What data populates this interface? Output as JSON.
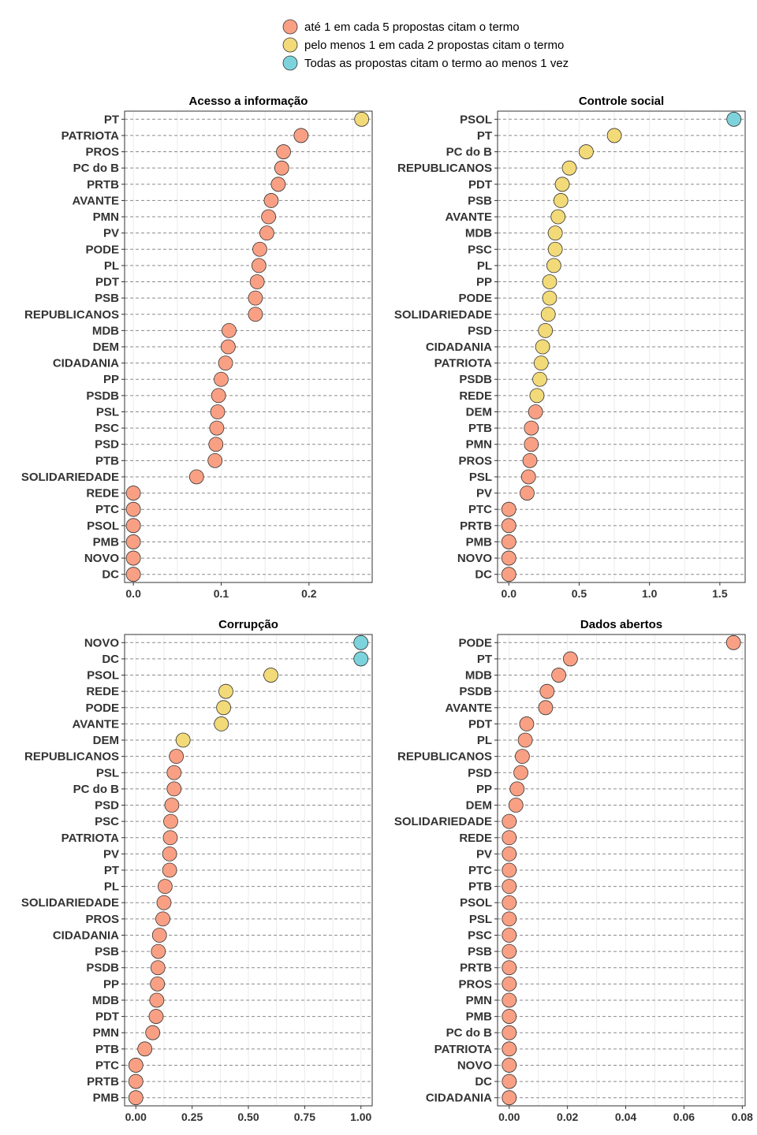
{
  "legend": {
    "items": [
      {
        "label": "até 1 em cada 5 propostas citam o termo",
        "color": "#F9A084"
      },
      {
        "label": "pelo menos 1 em cada 2 propostas citam o termo",
        "color": "#F2DA78"
      },
      {
        "label": "Todas as propostas citam o termo ao menos 1 vez",
        "color": "#7DD3DC"
      }
    ]
  },
  "chart_data": [
    {
      "type": "scatter",
      "title": "Acesso a informação",
      "xlim": [
        -0.01,
        0.272
      ],
      "ticks": [
        0.0,
        0.1,
        0.2
      ],
      "tick_labels": [
        "0.0",
        "0.1",
        "0.2"
      ],
      "categories": [
        "PT",
        "PATRIOTA",
        "PROS",
        "PC do B",
        "PRTB",
        "AVANTE",
        "PMN",
        "PV",
        "PODE",
        "PL",
        "PDT",
        "PSB",
        "REPUBLICANOS",
        "MDB",
        "DEM",
        "CIDADANIA",
        "PP",
        "PSDB",
        "PSL",
        "PSC",
        "PSD",
        "PTB",
        "SOLIDARIEDADE",
        "REDE",
        "PTC",
        "PSOL",
        "PMB",
        "NOVO",
        "DC"
      ],
      "values": [
        0.26,
        0.191,
        0.171,
        0.169,
        0.165,
        0.157,
        0.154,
        0.152,
        0.144,
        0.143,
        0.141,
        0.139,
        0.139,
        0.109,
        0.108,
        0.105,
        0.1,
        0.097,
        0.096,
        0.095,
        0.094,
        0.093,
        0.072,
        0,
        0,
        0,
        0,
        0,
        0
      ],
      "groups": [
        1,
        0,
        0,
        0,
        0,
        0,
        0,
        0,
        0,
        0,
        0,
        0,
        0,
        0,
        0,
        0,
        0,
        0,
        0,
        0,
        0,
        0,
        0,
        0,
        0,
        0,
        0,
        0,
        0
      ]
    },
    {
      "type": "scatter",
      "title": "Controle social",
      "xlim": [
        -0.08,
        1.68
      ],
      "ticks": [
        0.0,
        0.5,
        1.0,
        1.5
      ],
      "tick_labels": [
        "0.0",
        "0.5",
        "1.0",
        "1.5"
      ],
      "categories": [
        "PSOL",
        "PT",
        "PC do B",
        "REPUBLICANOS",
        "PDT",
        "PSB",
        "AVANTE",
        "MDB",
        "PSC",
        "PL",
        "PP",
        "PODE",
        "SOLIDARIEDADE",
        "PSD",
        "CIDADANIA",
        "PATRIOTA",
        "PSDB",
        "REDE",
        "DEM",
        "PTB",
        "PMN",
        "PROS",
        "PSL",
        "PV",
        "PTC",
        "PRTB",
        "PMB",
        "NOVO",
        "DC"
      ],
      "values": [
        1.6,
        0.75,
        0.55,
        0.43,
        0.38,
        0.37,
        0.35,
        0.33,
        0.33,
        0.32,
        0.29,
        0.29,
        0.28,
        0.26,
        0.24,
        0.23,
        0.22,
        0.2,
        0.19,
        0.16,
        0.16,
        0.15,
        0.14,
        0.13,
        0,
        0,
        0,
        0,
        0
      ],
      "groups": [
        2,
        1,
        1,
        1,
        1,
        1,
        1,
        1,
        1,
        1,
        1,
        1,
        1,
        1,
        1,
        1,
        1,
        1,
        0,
        0,
        0,
        0,
        0,
        0,
        0,
        0,
        0,
        0,
        0
      ]
    },
    {
      "type": "scatter",
      "title": "Corrupção",
      "xlim": [
        -0.05,
        1.05
      ],
      "ticks": [
        0.0,
        0.25,
        0.5,
        0.75,
        1.0
      ],
      "tick_labels": [
        "0.00",
        "0.25",
        "0.50",
        "0.75",
        "1.00"
      ],
      "categories": [
        "NOVO",
        "DC",
        "PSOL",
        "REDE",
        "PODE",
        "AVANTE",
        "DEM",
        "REPUBLICANOS",
        "PSL",
        "PC do B",
        "PSD",
        "PSC",
        "PATRIOTA",
        "PV",
        "PT",
        "PL",
        "SOLIDARIEDADE",
        "PROS",
        "CIDADANIA",
        "PSB",
        "PSDB",
        "PP",
        "MDB",
        "PDT",
        "PMN",
        "PTB",
        "PTC",
        "PRTB",
        "PMB"
      ],
      "values": [
        1.0,
        1.0,
        0.6,
        0.4,
        0.39,
        0.38,
        0.21,
        0.18,
        0.17,
        0.17,
        0.16,
        0.155,
        0.153,
        0.15,
        0.15,
        0.13,
        0.125,
        0.12,
        0.105,
        0.1,
        0.098,
        0.096,
        0.093,
        0.09,
        0.075,
        0.04,
        0,
        0,
        0
      ],
      "groups": [
        2,
        2,
        1,
        1,
        1,
        1,
        1,
        0,
        0,
        0,
        0,
        0,
        0,
        0,
        0,
        0,
        0,
        0,
        0,
        0,
        0,
        0,
        0,
        0,
        0,
        0,
        0,
        0,
        0
      ]
    },
    {
      "type": "scatter",
      "title": "Dados abertos",
      "xlim": [
        -0.004,
        0.081
      ],
      "ticks": [
        0.0,
        0.02,
        0.04,
        0.06,
        0.08
      ],
      "tick_labels": [
        "0.00",
        "0.02",
        "0.04",
        "0.06",
        "0.08"
      ],
      "categories": [
        "PODE",
        "PT",
        "MDB",
        "PSDB",
        "AVANTE",
        "PDT",
        "PL",
        "REPUBLICANOS",
        "PSD",
        "PP",
        "DEM",
        "SOLIDARIEDADE",
        "REDE",
        "PV",
        "PTC",
        "PTB",
        "PSOL",
        "PSL",
        "PSC",
        "PSB",
        "PRTB",
        "PROS",
        "PMN",
        "PMB",
        "PC do B",
        "PATRIOTA",
        "NOVO",
        "DC",
        "CIDADANIA"
      ],
      "values": [
        0.077,
        0.021,
        0.017,
        0.013,
        0.0125,
        0.006,
        0.0055,
        0.0045,
        0.004,
        0.0027,
        0.0023,
        0,
        0,
        0,
        0,
        0,
        0,
        0,
        0,
        0,
        0,
        0,
        0,
        0,
        0,
        0,
        0,
        0,
        0
      ],
      "groups": [
        0,
        0,
        0,
        0,
        0,
        0,
        0,
        0,
        0,
        0,
        0,
        0,
        0,
        0,
        0,
        0,
        0,
        0,
        0,
        0,
        0,
        0,
        0,
        0,
        0,
        0,
        0,
        0,
        0
      ]
    }
  ]
}
